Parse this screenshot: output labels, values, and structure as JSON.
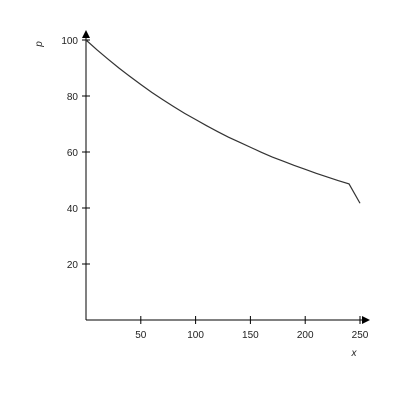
{
  "chart_data": {
    "type": "line",
    "xlabel": "x",
    "ylabel": "p",
    "xlim": [
      0,
      250
    ],
    "ylim": [
      0,
      100
    ],
    "x_ticks": [
      50,
      100,
      150,
      200,
      250
    ],
    "y_ticks": [
      20,
      40,
      60,
      80,
      100
    ],
    "grid": false,
    "legend": "none",
    "series": [
      {
        "x": [
          0,
          10,
          20,
          30,
          40,
          50,
          60,
          70,
          80,
          90,
          100,
          110,
          120,
          130,
          140,
          150,
          160,
          170,
          180,
          190,
          200,
          210,
          220,
          230,
          240,
          250
        ],
        "values": [
          100,
          96.5,
          93.2,
          90.0,
          87.0,
          84.1,
          81.3,
          78.7,
          76.2,
          73.8,
          71.6,
          69.4,
          67.3,
          65.3,
          63.5,
          61.7,
          59.9,
          58.2,
          56.7,
          55.2,
          53.8,
          52.4,
          51.1,
          49.8,
          48.6,
          41.7
        ]
      }
    ],
    "colors": {
      "axis": "#000000",
      "line": "#333333"
    }
  }
}
